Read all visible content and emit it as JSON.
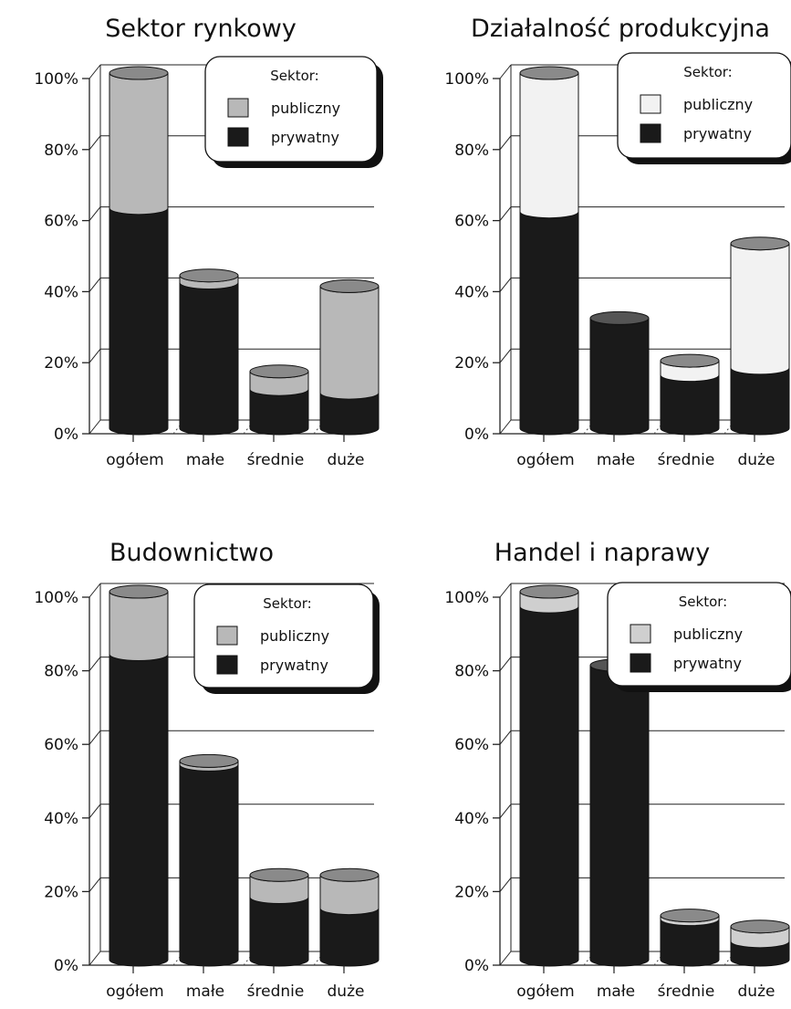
{
  "chart_data": [
    {
      "type": "bar",
      "title": "Sektor rynkowy",
      "categories": [
        "ogółem",
        "małe",
        "średnie",
        "duże"
      ],
      "legend_title": "Sektor:",
      "legend_placement": "top-right",
      "y_ticks": [
        "0%",
        "20%",
        "40%",
        "60%",
        "80%",
        "100%"
      ],
      "ylim": [
        0,
        100
      ],
      "stacked": true,
      "series": [
        {
          "name": "prywatny",
          "values": [
            62,
            41,
            11,
            10
          ],
          "color": "#1a1a1a"
        },
        {
          "name": "publiczny",
          "values": [
            38,
            2,
            5,
            30
          ],
          "color": "#b8b8b8"
        }
      ]
    },
    {
      "type": "bar",
      "title": "Działalność produkcyjna",
      "categories": [
        "ogółem",
        "małe",
        "średnie",
        "duże"
      ],
      "legend_title": "Sektor:",
      "legend_placement": "top-right",
      "y_ticks": [
        "0%",
        "20%",
        "40%",
        "60%",
        "80%",
        "100%"
      ],
      "ylim": [
        0,
        100
      ],
      "stacked": true,
      "series": [
        {
          "name": "prywatny",
          "values": [
            61,
            31,
            15,
            17
          ],
          "color": "#1a1a1a"
        },
        {
          "name": "publiczny",
          "values": [
            39,
            0,
            4,
            35
          ],
          "color": "#f2f2f2"
        }
      ]
    },
    {
      "type": "bar",
      "title": "Budownictwo",
      "categories": [
        "ogółem",
        "małe",
        "średnie",
        "duże"
      ],
      "legend_title": "Sektor:",
      "legend_placement": "top-right",
      "y_ticks": [
        "0%",
        "20%",
        "40%",
        "60%",
        "80%",
        "100%"
      ],
      "ylim": [
        0,
        100
      ],
      "stacked": true,
      "series": [
        {
          "name": "prywatny",
          "values": [
            83,
            53,
            17,
            14
          ],
          "color": "#1a1a1a"
        },
        {
          "name": "publiczny",
          "values": [
            17,
            1,
            6,
            9
          ],
          "color": "#b8b8b8"
        }
      ]
    },
    {
      "type": "bar",
      "title": "Handel i naprawy",
      "categories": [
        "ogółem",
        "małe",
        "średnie",
        "duże"
      ],
      "legend_title": "Sektor:",
      "legend_placement": "top-right",
      "y_ticks": [
        "0%",
        "20%",
        "40%",
        "60%",
        "80%",
        "100%"
      ],
      "ylim": [
        0,
        100
      ],
      "stacked": true,
      "series": [
        {
          "name": "prywatny",
          "values": [
            96,
            80,
            11,
            5
          ],
          "color": "#1a1a1a"
        },
        {
          "name": "publiczny",
          "values": [
            4,
            0,
            1,
            4
          ],
          "color": "#cfcfcf"
        }
      ]
    }
  ]
}
